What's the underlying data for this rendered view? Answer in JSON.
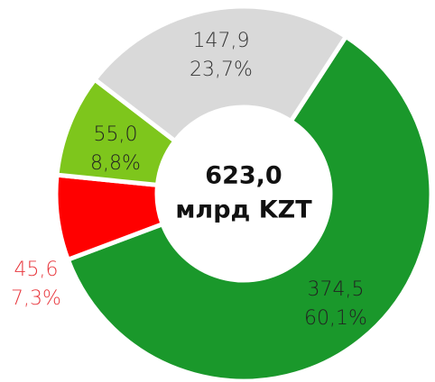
{
  "chart_data": {
    "type": "donut",
    "center_text": [
      "623,0",
      "млрд KZT"
    ],
    "categories": [
      null,
      null,
      null,
      null
    ],
    "values": [
      374.5,
      45.6,
      55.0,
      147.9
    ],
    "value_labels": [
      "374,5",
      "45,6",
      "55,0",
      "147,9"
    ],
    "percents": [
      60.1,
      7.3,
      8.8,
      23.7
    ],
    "percent_labels": [
      "60,1%",
      "7,3%",
      "8,8%",
      "23,7%"
    ],
    "colors": [
      "#1a982b",
      "#ff0000",
      "#7ec61c",
      "#d9d9d9"
    ],
    "label_colors": [
      "#222222",
      "#e8373d",
      "#222222",
      "#333333"
    ]
  }
}
